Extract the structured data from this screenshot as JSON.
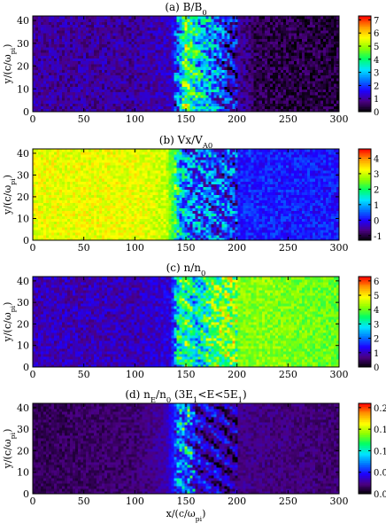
{
  "figure": {
    "x_axis_label": "x/(c/ω_pi)",
    "y_axis_label": "y/(c/ω_pi)"
  },
  "colorbar_palette": [
    "#000000",
    "#4b0082",
    "#1e00ff",
    "#0077ff",
    "#00e5ff",
    "#00ff66",
    "#8cff00",
    "#ffff00",
    "#ff9900",
    "#ff0000"
  ],
  "chart_data": [
    {
      "type": "heatmap",
      "panel": "a",
      "title": "(a) B/B0",
      "xlim": [
        0,
        300
      ],
      "ylim": [
        0,
        42
      ],
      "xticks": [
        0,
        50,
        100,
        150,
        200,
        250,
        300
      ],
      "yticks": [
        0,
        10,
        20,
        30,
        40
      ],
      "colorbar": {
        "min": 0,
        "max": 7.3,
        "ticks": [
          0,
          1,
          2,
          3,
          4,
          5,
          6,
          7
        ]
      },
      "profile_x": [
        0,
        100,
        135,
        142,
        150,
        160,
        175,
        195,
        220,
        260,
        300
      ],
      "profile_value": [
        1.0,
        1.0,
        1.2,
        2.2,
        4.5,
        3.5,
        2.6,
        1.2,
        0.5,
        0.4,
        0.4
      ]
    },
    {
      "type": "heatmap",
      "panel": "b",
      "title": "(b) Vx/VA0",
      "xlim": [
        0,
        300
      ],
      "ylim": [
        0,
        42
      ],
      "xticks": [
        0,
        50,
        100,
        150,
        200,
        250,
        300
      ],
      "yticks": [
        0,
        10,
        20,
        30,
        40
      ],
      "colorbar": {
        "min": -1.3,
        "max": 4.6,
        "ticks": [
          -1,
          0,
          1,
          2,
          3,
          4
        ]
      },
      "profile_x": [
        0,
        100,
        130,
        138,
        145,
        160,
        200,
        300
      ],
      "profile_value": [
        3.2,
        3.2,
        3.0,
        2.2,
        0.9,
        0.6,
        0.2,
        0.1
      ]
    },
    {
      "type": "heatmap",
      "panel": "c",
      "title": "(c) n/n0",
      "xlim": [
        0,
        300
      ],
      "ylim": [
        0,
        42
      ],
      "xticks": [
        0,
        50,
        100,
        150,
        200,
        250,
        300
      ],
      "yticks": [
        0,
        10,
        20,
        30,
        40
      ],
      "colorbar": {
        "min": 0,
        "max": 6.3,
        "ticks": [
          0,
          1,
          2,
          3,
          4,
          5,
          6
        ]
      },
      "profile_x": [
        0,
        100,
        135,
        142,
        150,
        160,
        180,
        220,
        300
      ],
      "profile_value": [
        1.0,
        1.0,
        1.2,
        3.0,
        3.5,
        2.8,
        4.0,
        4.2,
        4.0
      ]
    },
    {
      "type": "heatmap",
      "panel": "d",
      "title": "(d) nE/n0 (3E1<E<5E1)",
      "xlim": [
        0,
        300
      ],
      "ylim": [
        0,
        42
      ],
      "xticks": [
        0,
        50,
        100,
        150,
        200,
        250,
        300
      ],
      "yticks": [
        0,
        10,
        20,
        30,
        40
      ],
      "xlabel_shown": true,
      "colorbar": {
        "min": 0,
        "max": 0.21,
        "ticks": [
          0.0,
          0.05,
          0.1,
          0.15,
          0.2
        ],
        "tick_labels": [
          "0.00",
          "0.05",
          "0.10",
          "0.15",
          "0.20"
        ]
      },
      "profile_x": [
        0,
        100,
        130,
        145,
        160,
        200,
        300
      ],
      "profile_value": [
        0.015,
        0.02,
        0.03,
        0.07,
        0.04,
        0.025,
        0.02
      ]
    }
  ]
}
